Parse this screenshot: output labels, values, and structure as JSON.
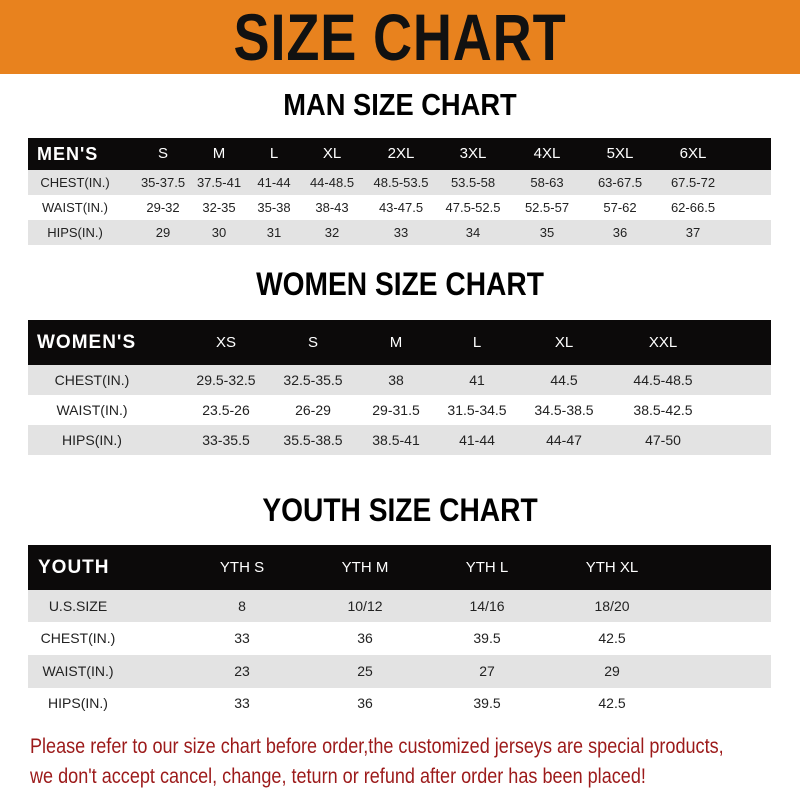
{
  "banner": {
    "title": "SIZE CHART",
    "color": "#e8821e"
  },
  "men": {
    "title": "MAN SIZE CHART",
    "header": [
      "MEN'S",
      "S",
      "M",
      "L",
      "XL",
      "2XL",
      "3XL",
      "4XL",
      "5XL",
      "6XL"
    ],
    "rows": [
      [
        "CHEST(IN.)",
        "35-37.5",
        "37.5-41",
        "41-44",
        "44-48.5",
        "48.5-53.5",
        "53.5-58",
        "58-63",
        "63-67.5",
        "67.5-72"
      ],
      [
        "WAIST(IN.)",
        "29-32",
        "32-35",
        "35-38",
        "38-43",
        "43-47.5",
        "47.5-52.5",
        "52.5-57",
        "57-62",
        "62-66.5"
      ],
      [
        "HIPS(IN.)",
        "29",
        "30",
        "31",
        "32",
        "33",
        "34",
        "35",
        "36",
        "37"
      ]
    ]
  },
  "women": {
    "title": "WOMEN SIZE CHART",
    "header": [
      "WOMEN'S",
      "XS",
      "S",
      "M",
      "L",
      "XL",
      "XXL"
    ],
    "rows": [
      [
        "CHEST(IN.)",
        "29.5-32.5",
        "32.5-35.5",
        "38",
        "41",
        "44.5",
        "44.5-48.5"
      ],
      [
        "WAIST(IN.)",
        "23.5-26",
        "26-29",
        "29-31.5",
        "31.5-34.5",
        "34.5-38.5",
        "38.5-42.5"
      ],
      [
        "HIPS(IN.)",
        "33-35.5",
        "35.5-38.5",
        "38.5-41",
        "41-44",
        "44-47",
        "47-50"
      ]
    ]
  },
  "youth": {
    "title": "YOUTH SIZE CHART",
    "header": [
      "YOUTH",
      "YTH S",
      "YTH M",
      "YTH L",
      "YTH XL"
    ],
    "rows": [
      [
        "U.S.SIZE",
        "8",
        "10/12",
        "14/16",
        "18/20"
      ],
      [
        "CHEST(IN.)",
        "33",
        "36",
        "39.5",
        "42.5"
      ],
      [
        "WAIST(IN.)",
        "23",
        "25",
        "27",
        "29"
      ],
      [
        "HIPS(IN.)",
        "33",
        "36",
        "39.5",
        "42.5"
      ]
    ]
  },
  "notice": {
    "line1": "Please refer to our size chart before order,the customized jerseys are special products,",
    "line2": "we don't accept cancel, change, teturn or refund after order has been placed!",
    "color": "#9c1a1a"
  }
}
